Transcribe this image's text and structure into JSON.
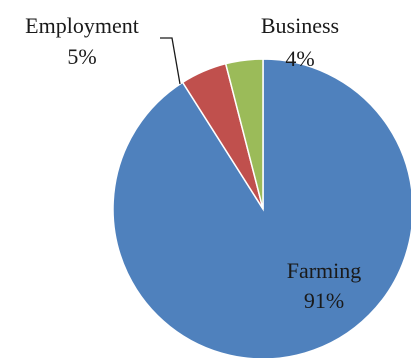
{
  "chart_data": {
    "type": "pie",
    "title": "",
    "slices": [
      {
        "label": "Farming",
        "value": 91,
        "value_label": "91%",
        "color": "#4f81bd"
      },
      {
        "label": "Employment",
        "value": 5,
        "value_label": "5%",
        "color": "#c0504d"
      },
      {
        "label": "Business",
        "value": 4,
        "value_label": "4%",
        "color": "#9bbb59"
      }
    ],
    "legend": "none",
    "label_style": "category-and-percent"
  }
}
